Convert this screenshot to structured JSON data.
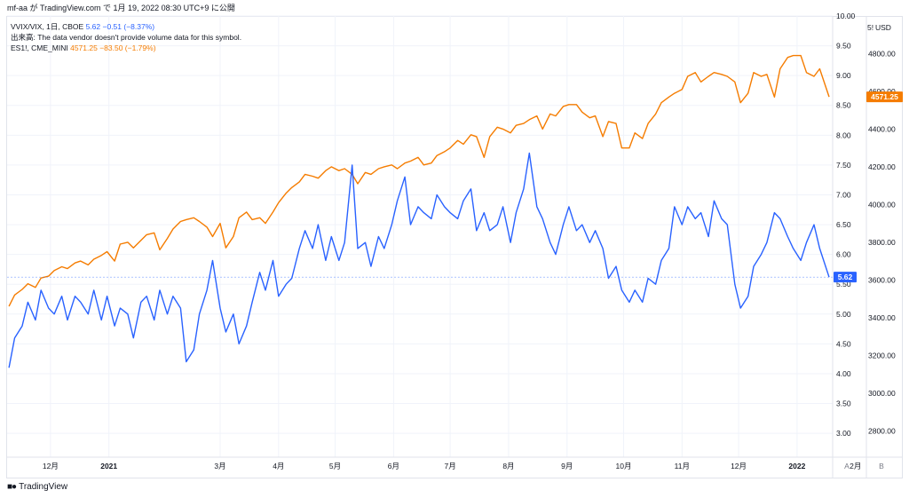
{
  "header": {
    "title": "mf-aa が TradingView.com で 1月 19, 2022 08:30 UTC+9 に公開"
  },
  "legend": {
    "series1_name": "VVIX/VIX, 1日, CBOE",
    "series1_value": "5.62",
    "series1_change": "−0.51 (−8.37%)",
    "volume_notice": "出来高: The data vendor doesn't provide volume data for this symbol.",
    "series2_name": "ES1!, CME_MINI",
    "series2_value": "4571.25",
    "series2_change": "−83.50 (−1.79%)"
  },
  "scales": {
    "left_currency": "5!",
    "right_currency": "USD",
    "left_ticks": [
      "10.00",
      "9.50",
      "9.00",
      "8.50",
      "8.00",
      "7.50",
      "7.00",
      "6.50",
      "6.00",
      "5.50",
      "5.00",
      "4.50",
      "4.00",
      "3.50",
      "3.00"
    ],
    "right_ticks": [
      "4800.00",
      "4600.00",
      "4400.00",
      "4200.00",
      "4000.00",
      "3800.00",
      "3600.00",
      "3400.00",
      "3200.00",
      "3000.00",
      "2800.00"
    ],
    "x_ticks": [
      "12月",
      "2021",
      "3月",
      "4月",
      "5月",
      "6月",
      "7月",
      "8月",
      "9月",
      "10月",
      "11月",
      "12月",
      "2022",
      "2月"
    ],
    "auto_label": "A",
    "log_label": "B"
  },
  "badges": {
    "vvix_last": "5.62",
    "es_last": "4571.25"
  },
  "colors": {
    "vvix": "#2962ff",
    "es": "#f57c00",
    "grid": "#f0f3fa",
    "text": "#131722"
  },
  "footer": {
    "brand": "TradingView"
  },
  "chart_data": {
    "type": "line",
    "title": "",
    "xlabel": "",
    "ylabel": "",
    "x_range": [
      "2020-11-08",
      "2022-01-18"
    ],
    "series": [
      {
        "name": "VVIX/VIX, 1日, CBOE",
        "axis": "left",
        "ylim": [
          2.6,
          10.0
        ],
        "points": [
          [
            "2020-11-09",
            4.1
          ],
          [
            "2020-11-12",
            4.6
          ],
          [
            "2020-11-16",
            4.8
          ],
          [
            "2020-11-19",
            5.2
          ],
          [
            "2020-11-23",
            4.9
          ],
          [
            "2020-11-26",
            5.4
          ],
          [
            "2020-11-30",
            5.1
          ],
          [
            "2020-12-03",
            5.0
          ],
          [
            "2020-12-07",
            5.3
          ],
          [
            "2020-12-10",
            4.9
          ],
          [
            "2020-12-14",
            5.3
          ],
          [
            "2020-12-17",
            5.2
          ],
          [
            "2020-12-21",
            5.0
          ],
          [
            "2020-12-24",
            5.4
          ],
          [
            "2020-12-28",
            4.9
          ],
          [
            "2020-12-31",
            5.3
          ],
          [
            "2021-01-04",
            4.8
          ],
          [
            "2021-01-07",
            5.1
          ],
          [
            "2021-01-11",
            5.0
          ],
          [
            "2021-01-14",
            4.6
          ],
          [
            "2021-01-18",
            5.2
          ],
          [
            "2021-01-21",
            5.3
          ],
          [
            "2021-01-25",
            4.9
          ],
          [
            "2021-01-28",
            5.4
          ],
          [
            "2021-02-01",
            5.0
          ],
          [
            "2021-02-04",
            5.3
          ],
          [
            "2021-02-08",
            5.1
          ],
          [
            "2021-02-11",
            4.2
          ],
          [
            "2021-02-15",
            4.4
          ],
          [
            "2021-02-18",
            5.0
          ],
          [
            "2021-02-22",
            5.4
          ],
          [
            "2021-02-25",
            5.9
          ],
          [
            "2021-03-01",
            5.1
          ],
          [
            "2021-03-04",
            4.7
          ],
          [
            "2021-03-08",
            5.0
          ],
          [
            "2021-03-11",
            4.5
          ],
          [
            "2021-03-15",
            4.8
          ],
          [
            "2021-03-18",
            5.2
          ],
          [
            "2021-03-22",
            5.7
          ],
          [
            "2021-03-25",
            5.4
          ],
          [
            "2021-03-29",
            5.9
          ],
          [
            "2021-04-01",
            5.3
          ],
          [
            "2021-04-05",
            5.5
          ],
          [
            "2021-04-08",
            5.6
          ],
          [
            "2021-04-12",
            6.1
          ],
          [
            "2021-04-15",
            6.4
          ],
          [
            "2021-04-19",
            6.1
          ],
          [
            "2021-04-22",
            6.5
          ],
          [
            "2021-04-26",
            5.9
          ],
          [
            "2021-04-29",
            6.3
          ],
          [
            "2021-05-03",
            5.9
          ],
          [
            "2021-05-06",
            6.2
          ],
          [
            "2021-05-10",
            7.5
          ],
          [
            "2021-05-13",
            6.1
          ],
          [
            "2021-05-17",
            6.2
          ],
          [
            "2021-05-20",
            5.8
          ],
          [
            "2021-05-24",
            6.3
          ],
          [
            "2021-05-27",
            6.1
          ],
          [
            "2021-05-31",
            6.5
          ],
          [
            "2021-06-03",
            6.9
          ],
          [
            "2021-06-07",
            7.3
          ],
          [
            "2021-06-10",
            6.5
          ],
          [
            "2021-06-14",
            6.8
          ],
          [
            "2021-06-17",
            6.7
          ],
          [
            "2021-06-21",
            6.6
          ],
          [
            "2021-06-24",
            7.0
          ],
          [
            "2021-06-28",
            6.8
          ],
          [
            "2021-07-01",
            6.7
          ],
          [
            "2021-07-05",
            6.6
          ],
          [
            "2021-07-08",
            6.9
          ],
          [
            "2021-07-12",
            7.1
          ],
          [
            "2021-07-15",
            6.4
          ],
          [
            "2021-07-19",
            6.7
          ],
          [
            "2021-07-22",
            6.4
          ],
          [
            "2021-07-26",
            6.5
          ],
          [
            "2021-07-29",
            6.8
          ],
          [
            "2021-08-02",
            6.2
          ],
          [
            "2021-08-05",
            6.7
          ],
          [
            "2021-08-09",
            7.1
          ],
          [
            "2021-08-12",
            7.7
          ],
          [
            "2021-08-16",
            6.8
          ],
          [
            "2021-08-19",
            6.6
          ],
          [
            "2021-08-23",
            6.2
          ],
          [
            "2021-08-26",
            6.0
          ],
          [
            "2021-08-30",
            6.5
          ],
          [
            "2021-09-02",
            6.8
          ],
          [
            "2021-09-06",
            6.4
          ],
          [
            "2021-09-09",
            6.5
          ],
          [
            "2021-09-13",
            6.2
          ],
          [
            "2021-09-16",
            6.4
          ],
          [
            "2021-09-20",
            6.1
          ],
          [
            "2021-09-23",
            5.6
          ],
          [
            "2021-09-27",
            5.8
          ],
          [
            "2021-09-30",
            5.4
          ],
          [
            "2021-10-04",
            5.2
          ],
          [
            "2021-10-07",
            5.4
          ],
          [
            "2021-10-11",
            5.2
          ],
          [
            "2021-10-14",
            5.6
          ],
          [
            "2021-10-18",
            5.5
          ],
          [
            "2021-10-21",
            5.9
          ],
          [
            "2021-10-25",
            6.1
          ],
          [
            "2021-10-28",
            6.8
          ],
          [
            "2021-11-01",
            6.5
          ],
          [
            "2021-11-04",
            6.8
          ],
          [
            "2021-11-08",
            6.6
          ],
          [
            "2021-11-11",
            6.7
          ],
          [
            "2021-11-15",
            6.3
          ],
          [
            "2021-11-18",
            6.9
          ],
          [
            "2021-11-22",
            6.6
          ],
          [
            "2021-11-25",
            6.5
          ],
          [
            "2021-11-29",
            5.5
          ],
          [
            "2021-12-02",
            5.1
          ],
          [
            "2021-12-06",
            5.3
          ],
          [
            "2021-12-09",
            5.8
          ],
          [
            "2021-12-13",
            6.0
          ],
          [
            "2021-12-16",
            6.2
          ],
          [
            "2021-12-20",
            6.7
          ],
          [
            "2021-12-23",
            6.6
          ],
          [
            "2021-12-27",
            6.3
          ],
          [
            "2021-12-30",
            6.1
          ],
          [
            "2022-01-03",
            5.9
          ],
          [
            "2022-01-06",
            6.2
          ],
          [
            "2022-01-10",
            6.5
          ],
          [
            "2022-01-13",
            6.1
          ],
          [
            "2022-01-18",
            5.62
          ]
        ]
      },
      {
        "name": "ES1!, CME_MINI",
        "axis": "right",
        "ylim": [
          2660,
          5000
        ],
        "points": [
          [
            "2020-11-09",
            3460
          ],
          [
            "2020-11-12",
            3520
          ],
          [
            "2020-11-16",
            3550
          ],
          [
            "2020-11-19",
            3580
          ],
          [
            "2020-11-23",
            3560
          ],
          [
            "2020-11-26",
            3610
          ],
          [
            "2020-11-30",
            3620
          ],
          [
            "2020-12-03",
            3650
          ],
          [
            "2020-12-07",
            3670
          ],
          [
            "2020-12-10",
            3660
          ],
          [
            "2020-12-14",
            3690
          ],
          [
            "2020-12-17",
            3700
          ],
          [
            "2020-12-21",
            3680
          ],
          [
            "2020-12-24",
            3710
          ],
          [
            "2020-12-28",
            3730
          ],
          [
            "2020-12-31",
            3750
          ],
          [
            "2021-01-04",
            3700
          ],
          [
            "2021-01-07",
            3790
          ],
          [
            "2021-01-11",
            3800
          ],
          [
            "2021-01-14",
            3770
          ],
          [
            "2021-01-18",
            3810
          ],
          [
            "2021-01-21",
            3840
          ],
          [
            "2021-01-25",
            3850
          ],
          [
            "2021-01-28",
            3760
          ],
          [
            "2021-02-01",
            3820
          ],
          [
            "2021-02-04",
            3870
          ],
          [
            "2021-02-08",
            3910
          ],
          [
            "2021-02-11",
            3920
          ],
          [
            "2021-02-15",
            3930
          ],
          [
            "2021-02-18",
            3910
          ],
          [
            "2021-02-22",
            3880
          ],
          [
            "2021-02-25",
            3830
          ],
          [
            "2021-03-01",
            3900
          ],
          [
            "2021-03-04",
            3770
          ],
          [
            "2021-03-08",
            3830
          ],
          [
            "2021-03-11",
            3930
          ],
          [
            "2021-03-15",
            3960
          ],
          [
            "2021-03-18",
            3920
          ],
          [
            "2021-03-22",
            3930
          ],
          [
            "2021-03-25",
            3900
          ],
          [
            "2021-03-29",
            3960
          ],
          [
            "2021-04-01",
            4010
          ],
          [
            "2021-04-05",
            4060
          ],
          [
            "2021-04-08",
            4090
          ],
          [
            "2021-04-12",
            4120
          ],
          [
            "2021-04-15",
            4160
          ],
          [
            "2021-04-19",
            4150
          ],
          [
            "2021-04-22",
            4140
          ],
          [
            "2021-04-26",
            4180
          ],
          [
            "2021-04-29",
            4200
          ],
          [
            "2021-05-03",
            4180
          ],
          [
            "2021-05-06",
            4190
          ],
          [
            "2021-05-10",
            4160
          ],
          [
            "2021-05-13",
            4110
          ],
          [
            "2021-05-17",
            4170
          ],
          [
            "2021-05-20",
            4160
          ],
          [
            "2021-05-24",
            4190
          ],
          [
            "2021-05-27",
            4200
          ],
          [
            "2021-05-31",
            4210
          ],
          [
            "2021-06-03",
            4190
          ],
          [
            "2021-06-07",
            4220
          ],
          [
            "2021-06-10",
            4230
          ],
          [
            "2021-06-14",
            4250
          ],
          [
            "2021-06-17",
            4210
          ],
          [
            "2021-06-21",
            4220
          ],
          [
            "2021-06-24",
            4260
          ],
          [
            "2021-06-28",
            4280
          ],
          [
            "2021-07-01",
            4300
          ],
          [
            "2021-07-05",
            4340
          ],
          [
            "2021-07-08",
            4320
          ],
          [
            "2021-07-12",
            4370
          ],
          [
            "2021-07-15",
            4360
          ],
          [
            "2021-07-19",
            4250
          ],
          [
            "2021-07-22",
            4360
          ],
          [
            "2021-07-26",
            4410
          ],
          [
            "2021-07-29",
            4400
          ],
          [
            "2021-08-02",
            4380
          ],
          [
            "2021-08-05",
            4420
          ],
          [
            "2021-08-09",
            4430
          ],
          [
            "2021-08-12",
            4450
          ],
          [
            "2021-08-16",
            4470
          ],
          [
            "2021-08-19",
            4400
          ],
          [
            "2021-08-23",
            4480
          ],
          [
            "2021-08-26",
            4470
          ],
          [
            "2021-08-30",
            4520
          ],
          [
            "2021-09-02",
            4530
          ],
          [
            "2021-09-06",
            4530
          ],
          [
            "2021-09-09",
            4490
          ],
          [
            "2021-09-13",
            4460
          ],
          [
            "2021-09-16",
            4470
          ],
          [
            "2021-09-20",
            4360
          ],
          [
            "2021-09-23",
            4440
          ],
          [
            "2021-09-27",
            4430
          ],
          [
            "2021-09-30",
            4300
          ],
          [
            "2021-10-04",
            4300
          ],
          [
            "2021-10-07",
            4380
          ],
          [
            "2021-10-11",
            4350
          ],
          [
            "2021-10-14",
            4430
          ],
          [
            "2021-10-18",
            4480
          ],
          [
            "2021-10-21",
            4540
          ],
          [
            "2021-10-25",
            4570
          ],
          [
            "2021-10-28",
            4590
          ],
          [
            "2021-11-01",
            4610
          ],
          [
            "2021-11-04",
            4680
          ],
          [
            "2021-11-08",
            4700
          ],
          [
            "2021-11-11",
            4650
          ],
          [
            "2021-11-15",
            4680
          ],
          [
            "2021-11-18",
            4700
          ],
          [
            "2021-11-22",
            4690
          ],
          [
            "2021-11-25",
            4680
          ],
          [
            "2021-11-29",
            4650
          ],
          [
            "2021-12-02",
            4540
          ],
          [
            "2021-12-06",
            4590
          ],
          [
            "2021-12-09",
            4700
          ],
          [
            "2021-12-13",
            4680
          ],
          [
            "2021-12-16",
            4690
          ],
          [
            "2021-12-20",
            4570
          ],
          [
            "2021-12-23",
            4720
          ],
          [
            "2021-12-27",
            4780
          ],
          [
            "2021-12-30",
            4790
          ],
          [
            "2022-01-03",
            4790
          ],
          [
            "2022-01-06",
            4700
          ],
          [
            "2022-01-10",
            4680
          ],
          [
            "2022-01-13",
            4720
          ],
          [
            "2022-01-18",
            4571.25
          ]
        ]
      }
    ],
    "grid": true,
    "legend_position": "top-left"
  }
}
